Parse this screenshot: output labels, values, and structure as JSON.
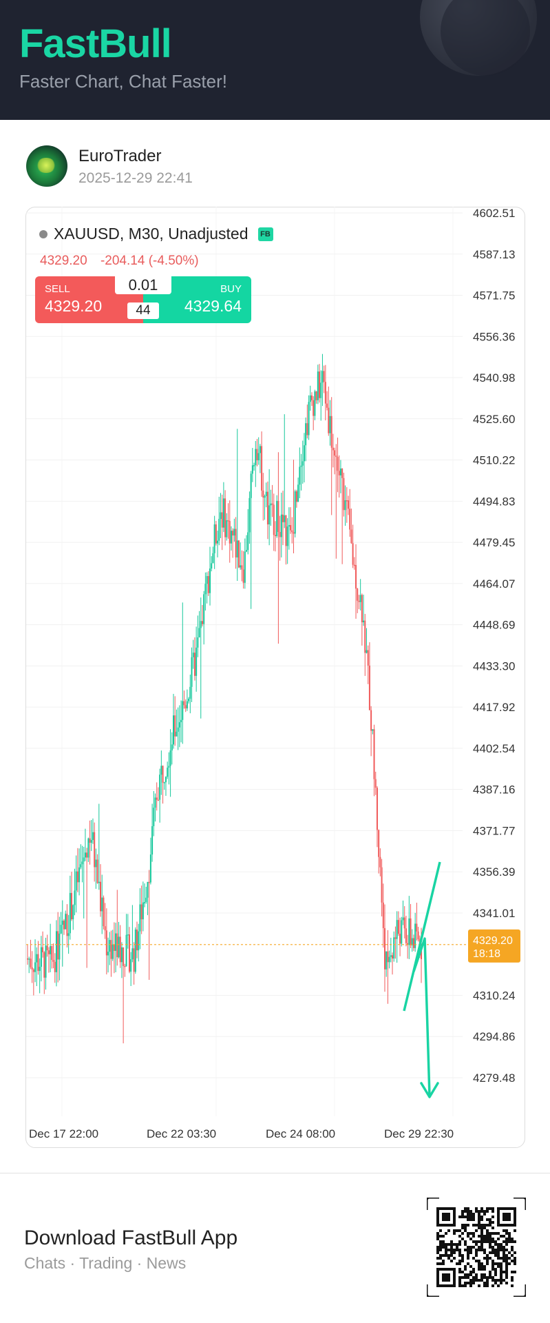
{
  "header": {
    "brand": "FastBull",
    "tagline": "Faster Chart, Chat Faster!"
  },
  "post": {
    "author": "EuroTrader",
    "timestamp": "2025-12-29 22:41"
  },
  "chart_header": {
    "symbol": "XAUUSD, M30, Unadjusted",
    "badge": "FB",
    "last": "4329.20",
    "change": "-204.14 (-4.50%)"
  },
  "trade": {
    "sell_label": "SELL",
    "sell_price": "4329.20",
    "buy_label": "BUY",
    "buy_price": "4329.64",
    "lot": "0.01",
    "spread": "44"
  },
  "current_price_tag": {
    "price": "4329.20",
    "countdown": "18:18"
  },
  "colors": {
    "up": "#14c79a",
    "down": "#f05a5a",
    "brand": "#1ad6a4",
    "price_tag": "#f5a623",
    "header_bg": "#1f2330"
  },
  "chart_data": {
    "type": "candlestick",
    "y_ticks": [
      "4602.51",
      "4587.13",
      "4571.75",
      "4556.36",
      "4540.98",
      "4525.60",
      "4510.22",
      "4494.83",
      "4479.45",
      "4464.07",
      "4448.69",
      "4433.30",
      "4417.92",
      "4402.54",
      "4387.16",
      "4371.77",
      "4356.39",
      "4341.01",
      "4310.24",
      "4294.86",
      "4279.48"
    ],
    "x_ticks": [
      "Dec 17 22:00",
      "Dec 22 03:30",
      "Dec 24 08:00",
      "Dec 29 22:30"
    ],
    "ylim": [
      4265,
      4605
    ],
    "trend_path": [
      {
        "t": 0.0,
        "price": 4324
      },
      {
        "t": 0.06,
        "price": 4322
      },
      {
        "t": 0.1,
        "price": 4338
      },
      {
        "t": 0.14,
        "price": 4360
      },
      {
        "t": 0.16,
        "price": 4372
      },
      {
        "t": 0.2,
        "price": 4330
      },
      {
        "t": 0.27,
        "price": 4325
      },
      {
        "t": 0.31,
        "price": 4360
      },
      {
        "t": 0.33,
        "price": 4388
      },
      {
        "t": 0.37,
        "price": 4408
      },
      {
        "t": 0.4,
        "price": 4420
      },
      {
        "t": 0.43,
        "price": 4438
      },
      {
        "t": 0.46,
        "price": 4468
      },
      {
        "t": 0.49,
        "price": 4492
      },
      {
        "t": 0.52,
        "price": 4482
      },
      {
        "t": 0.55,
        "price": 4470
      },
      {
        "t": 0.58,
        "price": 4520
      },
      {
        "t": 0.61,
        "price": 4490
      },
      {
        "t": 0.64,
        "price": 4488
      },
      {
        "t": 0.67,
        "price": 4480
      },
      {
        "t": 0.69,
        "price": 4510
      },
      {
        "t": 0.72,
        "price": 4532
      },
      {
        "t": 0.75,
        "price": 4540
      },
      {
        "t": 0.78,
        "price": 4512
      },
      {
        "t": 0.8,
        "price": 4500
      },
      {
        "t": 0.83,
        "price": 4470
      },
      {
        "t": 0.85,
        "price": 4455
      },
      {
        "t": 0.87,
        "price": 4420
      },
      {
        "t": 0.89,
        "price": 4370
      },
      {
        "t": 0.91,
        "price": 4320
      },
      {
        "t": 0.94,
        "price": 4335
      },
      {
        "t": 1.0,
        "price": 4329
      }
    ],
    "current_price": 4329.2
  },
  "footer": {
    "title": "Download FastBull App",
    "subtitle": "Chats · Trading · News"
  }
}
